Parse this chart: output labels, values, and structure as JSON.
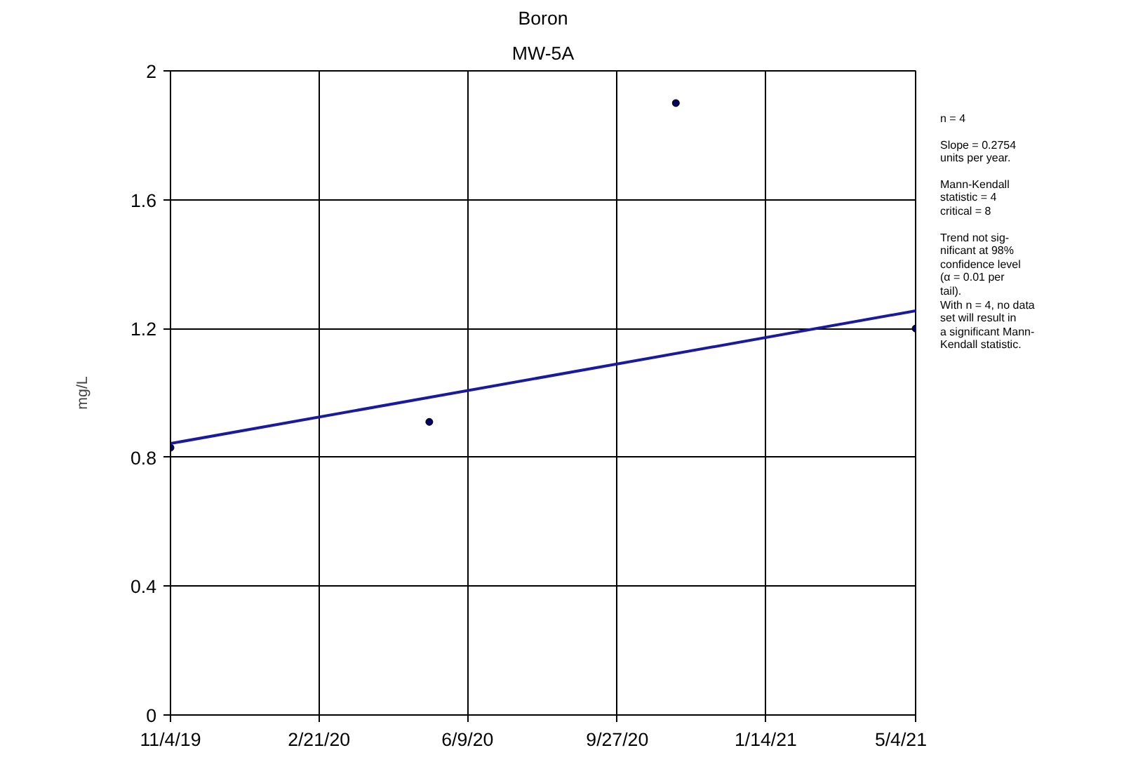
{
  "chart_data": {
    "type": "scatter",
    "title": "Boron",
    "subtitle": "MW-5A",
    "ylabel": "mg/L",
    "series": [
      {
        "color": "#000066",
        "marker": "circle",
        "x": [
          "2019-11-04",
          "2020-05-12",
          "2020-11-09",
          "2021-05-04"
        ],
        "values": [
          0.83,
          0.91,
          1.9,
          1.2
        ]
      },
      {
        "type": "line",
        "color": "#1a1aa0",
        "marker": "none",
        "line_style": "solid",
        "x": [
          "2019-11-04",
          "2021-05-04"
        ],
        "values": [
          0.843,
          1.255
        ]
      }
    ],
    "xlim": [
      "2019-11-04",
      "2021-05-04"
    ],
    "xticks": [
      {
        "value": "2019-11-04",
        "label": "11/4/19"
      },
      {
        "value": "2020-02-21",
        "label": "2/21/20"
      },
      {
        "value": "2020-06-09",
        "label": "6/9/20"
      },
      {
        "value": "2020-09-27",
        "label": "9/27/20"
      },
      {
        "value": "2021-01-14",
        "label": "1/14/21"
      },
      {
        "value": "2021-05-04",
        "label": "5/4/21"
      }
    ],
    "ylim": [
      0,
      2
    ],
    "yticks": [
      0,
      0.4,
      0.8,
      1.2,
      1.6,
      2
    ],
    "grid": true,
    "annotations": [
      "n = 4",
      "Slope = 0.2754\nunits per year.",
      "Mann-Kendall\nstatistic = 4\ncritical = 8",
      "Trend not sig-\nnificant at 98%\nconfidence level\n(α = 0.01 per\ntail).\nWith n = 4, no data\nset will result in\na significant Mann-\nKendall statistic."
    ]
  }
}
